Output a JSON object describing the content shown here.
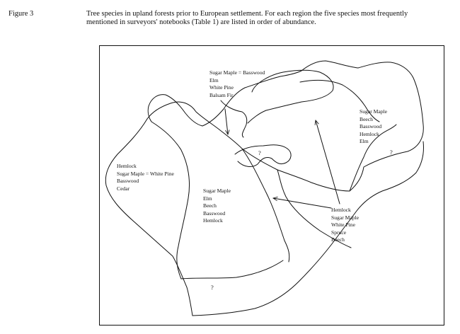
{
  "figure": {
    "label": "Figure 3",
    "caption_lines": [
      "Tree species in upland forests prior to European settlement.  For each region the five species most frequently",
      "mentioned in surveyors' notebooks (Table 1) are listed in order of abundance."
    ]
  },
  "map": {
    "regions": {
      "north": [
        "Sugar Maple = Basswood",
        "Elm",
        "White Pine",
        "Balsam Fir"
      ],
      "east": [
        "Sugar Maple",
        "Beech",
        "Basswood",
        "Hemlock",
        "Elm"
      ],
      "west": [
        "Hemlock",
        "Sugar Maple = White Pine",
        "Basswood",
        "Cedar"
      ],
      "central": [
        "Sugar Maple",
        "Elm",
        "Beech",
        "Basswood",
        "Hemlock"
      ],
      "southeast": [
        "Hemlock",
        "Sugar Maple",
        "White Pine",
        "Spruce",
        "Beech"
      ]
    },
    "unknown_marker": "?"
  }
}
